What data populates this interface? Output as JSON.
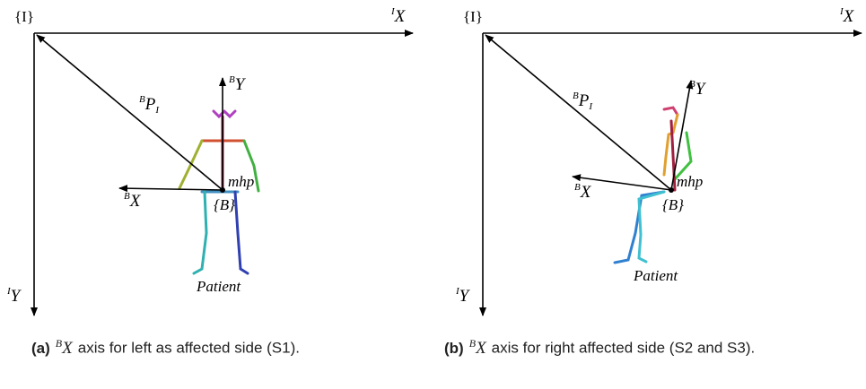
{
  "panels": [
    {
      "labels": {
        "inertial_frame": "{I}",
        "inertial_x": {
          "sup": "I",
          "main": "X"
        },
        "inertial_y": {
          "sup": "I",
          "main": "Y"
        },
        "position": {
          "sup": "B",
          "main": "P",
          "sub": "I"
        },
        "body_y": {
          "sup": "B",
          "main": "Y"
        },
        "body_x": {
          "sup": "B",
          "main": "X"
        },
        "hip": "mhp",
        "body_frame": "{B}",
        "patient": "Patient"
      },
      "caption": {
        "tag": "(a)",
        "sup": "B",
        "symbol": "X",
        "text": "axis for left as affected side (S1)."
      }
    },
    {
      "labels": {
        "inertial_frame": "{I}",
        "inertial_x": {
          "sup": "I",
          "main": "X"
        },
        "inertial_y": {
          "sup": "I",
          "main": "Y"
        },
        "position": {
          "sup": "B",
          "main": "P",
          "sub": "I"
        },
        "body_y": {
          "sup": "B",
          "main": "Y"
        },
        "body_x": {
          "sup": "B",
          "main": "X"
        },
        "hip": "mhp",
        "body_frame": "{B}",
        "patient": "Patient"
      },
      "caption": {
        "tag": "(b)",
        "sup": "B",
        "symbol": "X",
        "text": "axis for right affected side (S2 and S3)."
      }
    }
  ]
}
